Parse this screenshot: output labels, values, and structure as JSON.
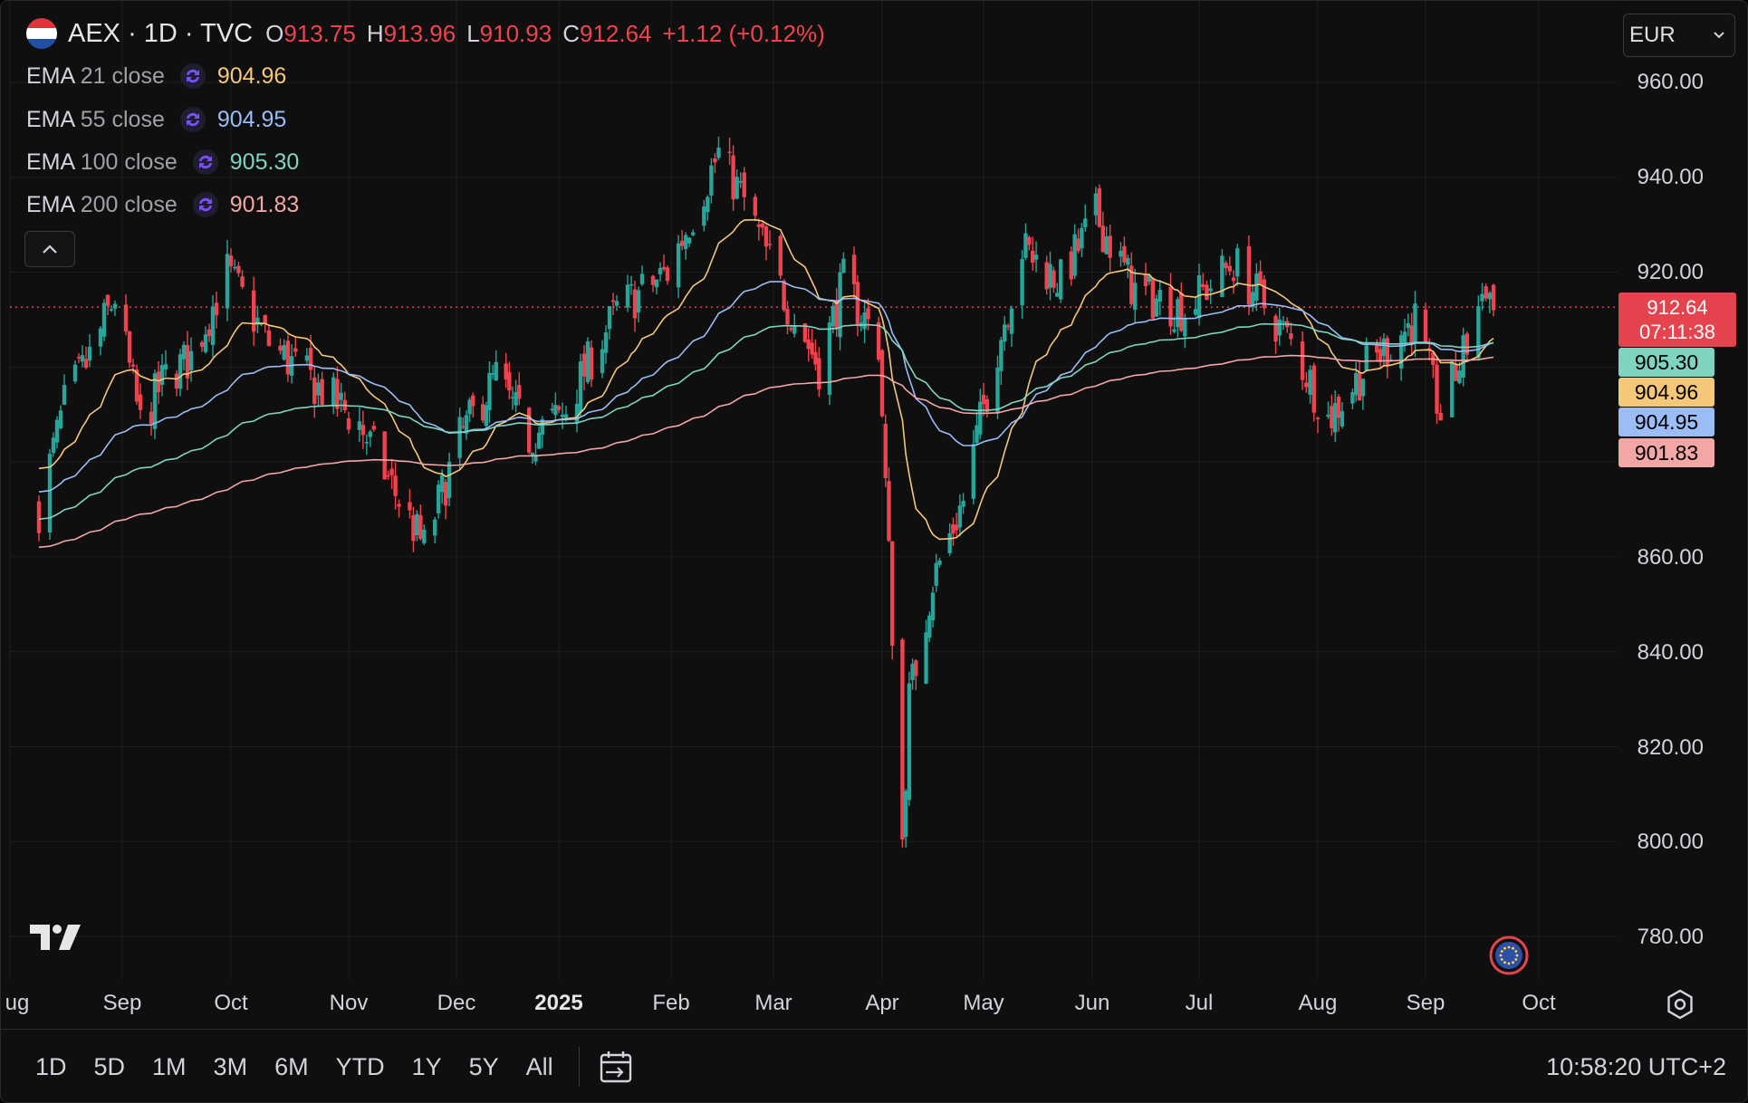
{
  "header": {
    "symbol": "AEX · 1D · TVC",
    "ohlc": [
      {
        "key": "O",
        "value": "913.75"
      },
      {
        "key": "H",
        "value": "913.96"
      },
      {
        "key": "L",
        "value": "910.93"
      },
      {
        "key": "C",
        "value": "912.64"
      }
    ],
    "change": "+1.12 (+0.12%)",
    "flag_colors": [
      "#e0333a",
      "#ffffff",
      "#1f4fa3"
    ]
  },
  "indicators": [
    {
      "name": "EMA",
      "args": "21 close",
      "value": "904.96",
      "color": "#f5c779"
    },
    {
      "name": "EMA",
      "args": "55 close",
      "value": "904.95",
      "color": "#9bbcf5"
    },
    {
      "name": "EMA",
      "args": "100 close",
      "value": "905.30",
      "color": "#7fd4c1"
    },
    {
      "name": "EMA",
      "args": "200 close",
      "value": "901.83",
      "color": "#f3a6a6"
    }
  ],
  "currency": {
    "label": "EUR"
  },
  "price_axis": {
    "labels": [
      "960.00",
      "940.00",
      "920.00",
      "860.00",
      "840.00",
      "820.00",
      "800.00",
      "780.00"
    ]
  },
  "time_axis": {
    "labels": [
      {
        "text": "ug",
        "year": false
      },
      {
        "text": "Sep",
        "year": false
      },
      {
        "text": "Oct",
        "year": false
      },
      {
        "text": "Nov",
        "year": false
      },
      {
        "text": "Dec",
        "year": false
      },
      {
        "text": "2025",
        "year": true
      },
      {
        "text": "Feb",
        "year": false
      },
      {
        "text": "Mar",
        "year": false
      },
      {
        "text": "Apr",
        "year": false
      },
      {
        "text": "May",
        "year": false
      },
      {
        "text": "Jun",
        "year": false
      },
      {
        "text": "Jul",
        "year": false
      },
      {
        "text": "Aug",
        "year": false
      },
      {
        "text": "Sep",
        "year": false
      },
      {
        "text": "Oct",
        "year": false
      }
    ]
  },
  "last_price": {
    "value": "912.64",
    "countdown": "07:11:38"
  },
  "axis_tags": [
    {
      "value": "905.30",
      "color": "#7fd4c1"
    },
    {
      "value": "904.96",
      "color": "#f5c779"
    },
    {
      "value": "904.95",
      "color": "#9bbcf5"
    },
    {
      "value": "901.83",
      "color": "#f3a6a6"
    }
  ],
  "range_buttons": [
    "1D",
    "5D",
    "1M",
    "3M",
    "6M",
    "YTD",
    "1Y",
    "5Y",
    "All"
  ],
  "clock": "10:58:20 UTC+2",
  "icons": {
    "collapse": "chevron-up-icon",
    "currency_dropdown": "chevron-down-icon",
    "indicator": "sync-icon",
    "logo": "tradingview-logo",
    "settings": "gear-icon",
    "date_range": "calendar-range-icon",
    "event": "eu-flag-event-icon"
  },
  "chart_data": {
    "type": "candlestick",
    "symbol": "AEX",
    "interval": "1D",
    "source": "TVC",
    "currency": "EUR",
    "up_color": "#26a69a",
    "down_color": "#f0434f",
    "ylim": [
      772,
      972
    ],
    "y_ticks": [
      960,
      940,
      920,
      860,
      840,
      820,
      800,
      780
    ],
    "grid": true,
    "last_close": 912.64,
    "closes_monthly_approx": [
      {
        "date": "2024-08-09",
        "close": 870
      },
      {
        "date": "2024-08-16",
        "close": 892
      },
      {
        "date": "2024-08-23",
        "close": 902
      },
      {
        "date": "2024-08-30",
        "close": 915
      },
      {
        "date": "2024-09-06",
        "close": 888
      },
      {
        "date": "2024-09-13",
        "close": 898
      },
      {
        "date": "2024-09-20",
        "close": 902
      },
      {
        "date": "2024-09-30",
        "close": 920
      },
      {
        "date": "2024-10-11",
        "close": 905
      },
      {
        "date": "2024-10-25",
        "close": 895
      },
      {
        "date": "2024-11-04",
        "close": 888
      },
      {
        "date": "2024-11-15",
        "close": 872
      },
      {
        "date": "2024-11-22",
        "close": 862
      },
      {
        "date": "2024-12-02",
        "close": 885
      },
      {
        "date": "2024-12-13",
        "close": 898
      },
      {
        "date": "2024-12-23",
        "close": 885
      },
      {
        "date": "2025-01-02",
        "close": 890
      },
      {
        "date": "2025-01-10",
        "close": 902
      },
      {
        "date": "2025-01-17",
        "close": 912
      },
      {
        "date": "2025-01-31",
        "close": 920
      },
      {
        "date": "2025-02-14",
        "close": 945
      },
      {
        "date": "2025-02-21",
        "close": 935
      },
      {
        "date": "2025-03-04",
        "close": 915
      },
      {
        "date": "2025-03-14",
        "close": 900
      },
      {
        "date": "2025-03-21",
        "close": 918
      },
      {
        "date": "2025-03-31",
        "close": 905
      },
      {
        "date": "2025-04-07",
        "close": 800
      },
      {
        "date": "2025-04-09",
        "close": 830
      },
      {
        "date": "2025-04-16",
        "close": 855
      },
      {
        "date": "2025-04-25",
        "close": 872
      },
      {
        "date": "2025-05-02",
        "close": 895
      },
      {
        "date": "2025-05-12",
        "close": 925
      },
      {
        "date": "2025-05-23",
        "close": 918
      },
      {
        "date": "2025-06-02",
        "close": 932
      },
      {
        "date": "2025-06-13",
        "close": 916
      },
      {
        "date": "2025-06-27",
        "close": 912
      },
      {
        "date": "2025-07-10",
        "close": 922
      },
      {
        "date": "2025-07-25",
        "close": 905
      },
      {
        "date": "2025-08-04",
        "close": 889
      },
      {
        "date": "2025-08-15",
        "close": 900
      },
      {
        "date": "2025-08-29",
        "close": 910
      },
      {
        "date": "2025-09-05",
        "close": 890
      },
      {
        "date": "2025-09-12",
        "close": 905
      },
      {
        "date": "2025-09-17",
        "close": 918
      },
      {
        "date": "2025-09-19",
        "close": 912.64
      }
    ]
  }
}
